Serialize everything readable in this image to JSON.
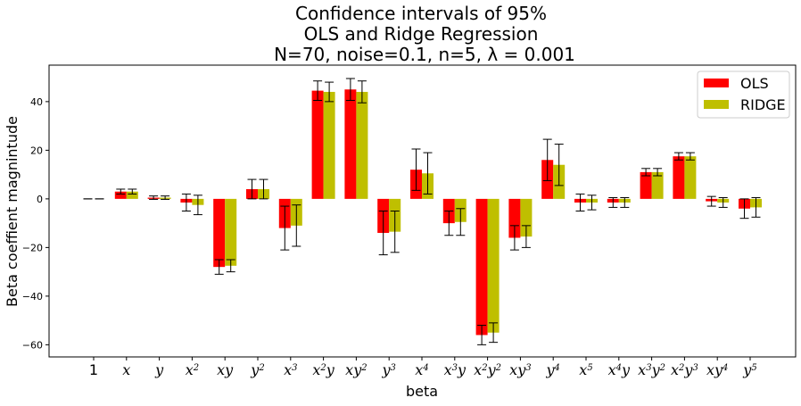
{
  "chart_data": {
    "type": "bar",
    "title_lines": [
      "Confidence intervals of 95%",
      "OLS and Ridge Regression",
      "N=70, noise=0.1, n=5, λ =  0.001"
    ],
    "xlabel": "beta",
    "ylabel": "Beta coeffient magnintude",
    "ylim": [
      -65,
      55
    ],
    "yticks": [
      -60,
      -40,
      -20,
      0,
      20,
      40
    ],
    "categories": [
      {
        "base": "1",
        "sup": ""
      },
      {
        "base": "x",
        "sup": ""
      },
      {
        "base": "y",
        "sup": ""
      },
      {
        "base": "x",
        "sup": "2"
      },
      {
        "base": "xy",
        "sup": ""
      },
      {
        "base": "y",
        "sup": "2"
      },
      {
        "base": "x",
        "sup": "3"
      },
      {
        "base": "x",
        "sup": "2",
        "base2": "y",
        "sup2": ""
      },
      {
        "base": "xy",
        "sup": "2"
      },
      {
        "base": "y",
        "sup": "3"
      },
      {
        "base": "x",
        "sup": "4"
      },
      {
        "base": "x",
        "sup": "3",
        "base2": "y",
        "sup2": ""
      },
      {
        "base": "x",
        "sup": "2",
        "base2": "y",
        "sup2": "2"
      },
      {
        "base": "xy",
        "sup": "3"
      },
      {
        "base": "y",
        "sup": "4"
      },
      {
        "base": "x",
        "sup": "5"
      },
      {
        "base": "x",
        "sup": "4",
        "base2": "y",
        "sup2": ""
      },
      {
        "base": "x",
        "sup": "3",
        "base2": "y",
        "sup2": "2"
      },
      {
        "base": "x",
        "sup": "2",
        "base2": "y",
        "sup2": "3"
      },
      {
        "base": "xy",
        "sup": "4"
      },
      {
        "base": "y",
        "sup": "5"
      }
    ],
    "series": [
      {
        "name": "OLS",
        "color": "#ff0000",
        "values": [
          0,
          3,
          0.5,
          -1.5,
          -28,
          4,
          -12,
          44.5,
          45,
          -14,
          12,
          -10,
          -56,
          -16,
          16,
          -1.5,
          -1.5,
          11,
          17.5,
          -1,
          -4
        ],
        "error": [
          0,
          1,
          0.7,
          3.5,
          3,
          4,
          9,
          4,
          4.5,
          9,
          8.5,
          5,
          4,
          5,
          8.5,
          3.5,
          2,
          1.5,
          1.5,
          2,
          4
        ]
      },
      {
        "name": "RIDGE",
        "color": "#bfbf00",
        "values": [
          0,
          3,
          0.5,
          -2.5,
          -27.5,
          4,
          -11,
          44,
          44,
          -13.5,
          10.5,
          -9.5,
          -55,
          -15.5,
          14,
          -1.5,
          -1.5,
          11,
          17.5,
          -1.5,
          -3.5
        ],
        "error": [
          0,
          1,
          0.7,
          4,
          2.5,
          4,
          8.5,
          4,
          4.5,
          8.5,
          8.5,
          5.5,
          4,
          4.5,
          8.5,
          3,
          2,
          1.5,
          1.5,
          2,
          4
        ]
      }
    ],
    "legend_position": "top-right",
    "grid": false
  }
}
